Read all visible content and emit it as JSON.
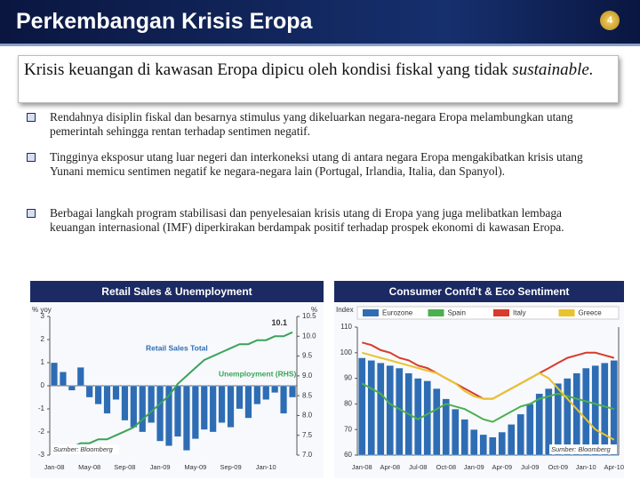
{
  "header": {
    "title": "Perkembangan Krisis Eropa",
    "page_number": "4"
  },
  "intro": {
    "text_1": "Krisis keuangan di kawasan Eropa dipicu oleh kondisi fiskal yang tidak ",
    "text_2": "sustainable."
  },
  "bullets": [
    "Rendahnya disiplin fiskal dan besarnya stimulus yang dikeluarkan negara-negara Eropa melambungkan utang pemerintah sehingga rentan terhadap sentimen negatif.",
    "Tingginya eksposur utang luar negeri dan interkoneksi utang di antara negara Eropa mengakibatkan krisis utang  Yunani memicu sentimen negatif ke negara-negara lain (Portugal, Irlandia, Italia, dan Spanyol).",
    "Berbagai langkah program stabilisasi dan penyelesaian krisis utang di Eropa yang juga melibatkan lembaga keuangan internasional (IMF)  diperkirakan berdampak positif terhadap prospek ekonomi di kawasan Eropa."
  ],
  "chart_data": [
    {
      "type": "bar",
      "title": "Retail Sales & Unemployment",
      "y_label": "% yoy",
      "y2_label": "%",
      "categories": [
        "Jan-08",
        null,
        null,
        null,
        "May-08",
        null,
        null,
        null,
        "Sep-08",
        null,
        null,
        null,
        "Jan-09",
        null,
        null,
        null,
        "May-09",
        null,
        null,
        null,
        "Sep-09",
        null,
        null,
        null,
        "Jan-10",
        null,
        null,
        null
      ],
      "series": [
        {
          "name": "Retail Sales Total",
          "type": "bar",
          "color": "#2e6db4",
          "values": [
            1.0,
            0.6,
            -0.2,
            0.8,
            -0.5,
            -0.8,
            -1.2,
            -0.6,
            -1.5,
            -1.8,
            -2.0,
            -1.6,
            -2.4,
            -2.6,
            -2.2,
            -2.8,
            -2.3,
            -1.9,
            -2.0,
            -1.6,
            -1.8,
            -1.0,
            -1.4,
            -0.8,
            -0.6,
            -0.3,
            -1.2,
            -0.5
          ]
        },
        {
          "name": "Unemployment (RHS)",
          "type": "line",
          "axis": "y2",
          "color": "#3aa35a",
          "values": [
            7.2,
            7.2,
            7.2,
            7.3,
            7.3,
            7.4,
            7.4,
            7.5,
            7.6,
            7.7,
            7.9,
            8.1,
            8.3,
            8.5,
            8.8,
            9.0,
            9.2,
            9.4,
            9.5,
            9.6,
            9.7,
            9.8,
            9.8,
            9.9,
            9.9,
            10.0,
            10.0,
            10.1
          ]
        }
      ],
      "ylim": [
        -3,
        3
      ],
      "yticks": [
        3,
        2,
        1,
        0,
        -1,
        -2,
        -3
      ],
      "y2lim": [
        7,
        10.5
      ],
      "y2ticks": [
        {
          "value": 10.5,
          "label": "10.5"
        },
        {
          "value": 10,
          "label": "10.0"
        },
        9.5,
        {
          "value": 9,
          "label": "9.0"
        },
        8.5,
        {
          "value": 8,
          "label": "8.0"
        },
        7.5,
        {
          "value": 7,
          "label": "7.0"
        }
      ],
      "annotations": [
        "10.1"
      ],
      "source": "Sumber: Bloomberg",
      "legend": false
    },
    {
      "type": "bar",
      "title": "Consumer Confd't & Eco Sentiment",
      "y_label": "Index",
      "categories": [
        "Jan-08",
        null,
        null,
        "Apr-08",
        null,
        null,
        "Jul-08",
        null,
        null,
        "Oct-08",
        null,
        null,
        "Jan-09",
        null,
        null,
        "Apr-09",
        null,
        null,
        "Jul-09",
        null,
        null,
        "Oct-09",
        null,
        null,
        "Jan-10",
        null,
        null,
        "Apr-10"
      ],
      "series": [
        {
          "name": "Eurozone",
          "type": "bar",
          "color": "#2e6db4",
          "values": [
            98,
            97,
            96,
            95,
            94,
            92,
            90,
            89,
            86,
            82,
            78,
            74,
            70,
            68,
            67,
            69,
            72,
            76,
            80,
            84,
            86,
            88,
            90,
            92,
            94,
            95,
            96,
            97
          ]
        },
        {
          "name": "Spain",
          "type": "line",
          "color": "#4caf50",
          "values": [
            88,
            86,
            84,
            80,
            78,
            76,
            74,
            76,
            78,
            80,
            79,
            78,
            76,
            74,
            73,
            75,
            77,
            79,
            80,
            82,
            83,
            84,
            83,
            82,
            81,
            80,
            79,
            78
          ]
        },
        {
          "name": "Italy",
          "type": "line",
          "color": "#d83b2b",
          "values": [
            104,
            103,
            101,
            100,
            98,
            97,
            95,
            94,
            92,
            90,
            88,
            86,
            84,
            82,
            82,
            84,
            86,
            88,
            90,
            92,
            94,
            96,
            98,
            99,
            100,
            100,
            99,
            98
          ]
        },
        {
          "name": "Greece",
          "type": "line",
          "color": "#e8c32e",
          "values": [
            100,
            99,
            98,
            97,
            96,
            95,
            94,
            93,
            92,
            90,
            88,
            85,
            83,
            82,
            82,
            84,
            86,
            88,
            90,
            92,
            90,
            86,
            82,
            78,
            74,
            70,
            68,
            66
          ]
        }
      ],
      "ylim": [
        60,
        110
      ],
      "yticks": [
        110,
        100,
        90,
        80,
        70,
        60
      ],
      "source": "Sumber: Bloomberg",
      "legend": true
    }
  ]
}
